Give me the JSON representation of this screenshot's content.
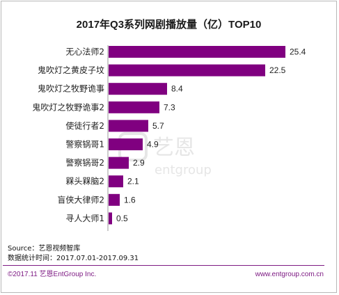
{
  "chart_data": {
    "type": "bar",
    "orientation": "horizontal",
    "title": "2017年Q3系列网剧播放量（亿）TOP10",
    "categories": [
      "无心法师2",
      "鬼吹灯之黄皮子坟",
      "鬼吹灯之牧野诡事",
      "鬼吹灯之牧野诡事2",
      "使徒行者2",
      "警察锅哥1",
      "警察锅哥2",
      "槑头槑脑2",
      "盲侠大律师2",
      "寻人大师1"
    ],
    "values": [
      25.4,
      22.5,
      8.4,
      7.3,
      5.7,
      4.9,
      2.9,
      2.1,
      1.6,
      0.5
    ],
    "value_labels": [
      "25.4",
      "22.5",
      "8.4",
      "7.3",
      "5.7",
      "4.9",
      "2.9",
      "2.1",
      "1.6",
      "0.5"
    ],
    "xlim": [
      0,
      27
    ],
    "bar_color": "#800080",
    "grid": false,
    "legend": "none"
  },
  "watermark": {
    "cn": "艺恩",
    "en": "entgroup"
  },
  "source": {
    "line1": "Source：艺恩视频智库",
    "line2": "数据统计时间：2017.07.01-2017.09.31"
  },
  "footer": {
    "left": "©2017.11 艺恩EntGroup Inc.",
    "right": "www.entgroup.com.cn",
    "color": "#7d1a83"
  }
}
